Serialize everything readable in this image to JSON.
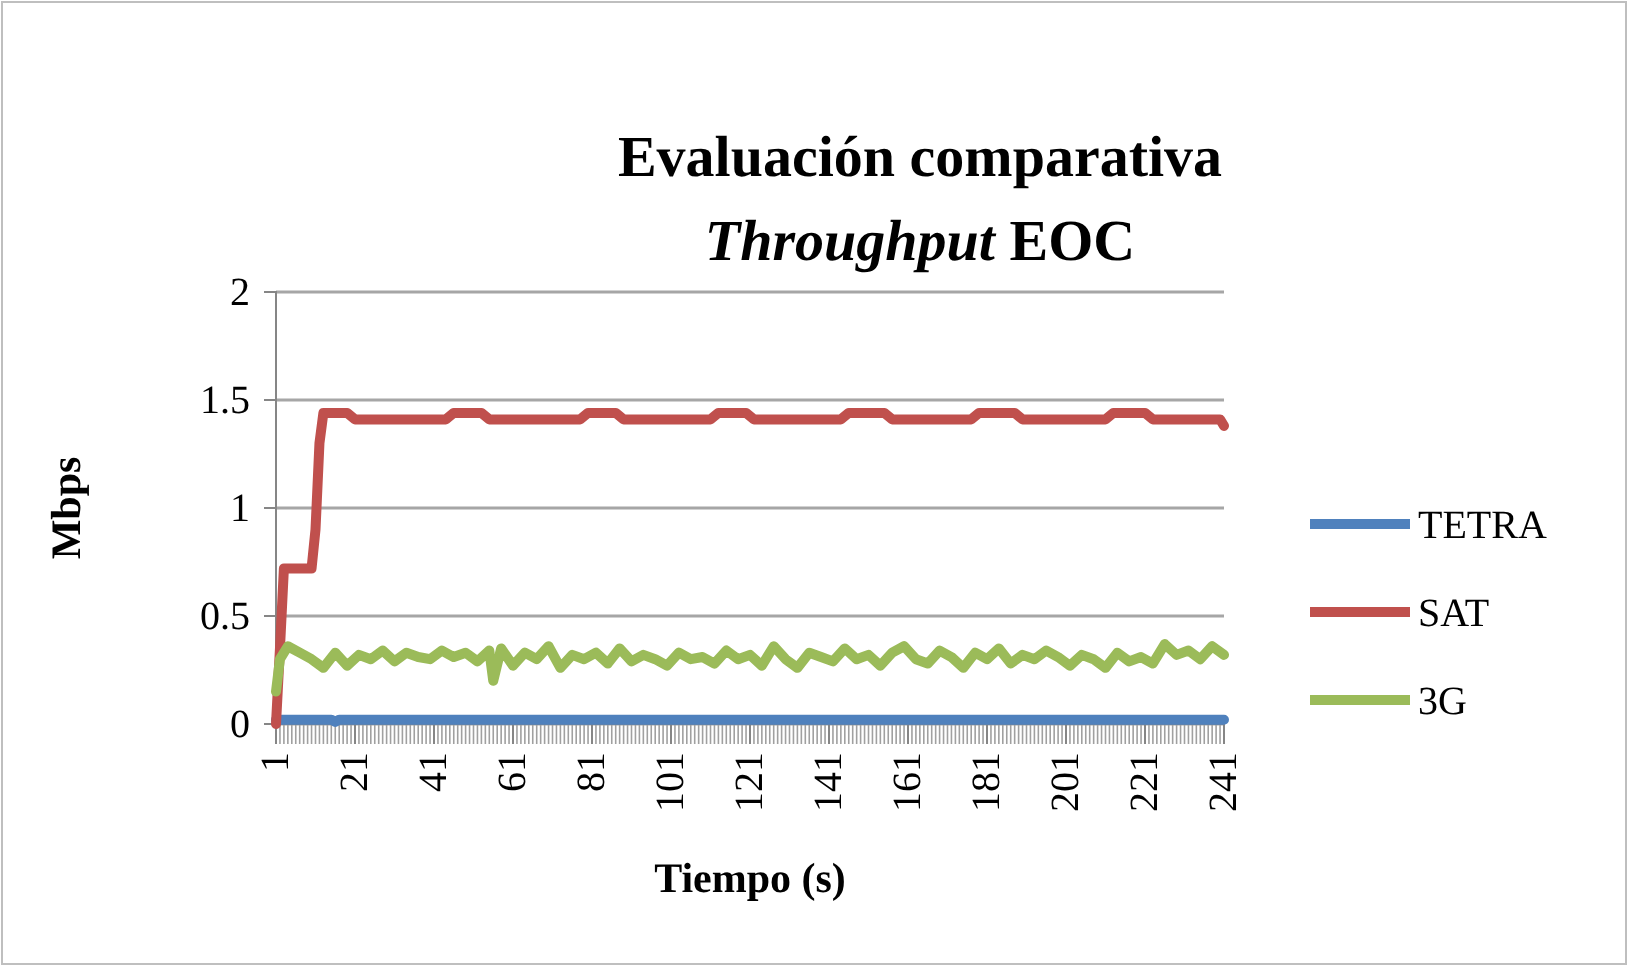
{
  "chart_data": {
    "type": "line",
    "title": "Evaluación comparativa",
    "subtitle": "Throughput EOC",
    "xlabel": "Tiempo (s)",
    "ylabel": "Mbps",
    "xlim": [
      1,
      241
    ],
    "xticks": [
      1,
      21,
      41,
      61,
      81,
      101,
      121,
      141,
      161,
      181,
      201,
      221,
      241
    ],
    "ylim": [
      0,
      2
    ],
    "yticks": [
      0,
      0.5,
      1,
      1.5,
      2
    ],
    "grid": "y",
    "legend": "right",
    "marker": "none",
    "line_style": "solid",
    "series": [
      {
        "name": "TETRA",
        "color": "#4f81bd",
        "x": [
          1,
          15,
          16,
          17,
          241
        ],
        "values": [
          0.02,
          0.02,
          0.01,
          0.02,
          0.02
        ]
      },
      {
        "name": "SAT",
        "color": "#c0504d",
        "x": [
          1,
          2,
          3,
          10,
          11,
          12,
          13,
          19,
          21,
          44,
          46,
          53,
          55,
          78,
          80,
          87,
          89,
          111,
          113,
          120,
          122,
          144,
          146,
          155,
          157,
          177,
          179,
          188,
          190,
          211,
          213,
          221,
          223,
          240,
          241
        ],
        "values": [
          0,
          0.35,
          0.72,
          0.72,
          0.9,
          1.3,
          1.44,
          1.44,
          1.41,
          1.41,
          1.44,
          1.44,
          1.41,
          1.41,
          1.44,
          1.44,
          1.41,
          1.41,
          1.44,
          1.44,
          1.41,
          1.41,
          1.44,
          1.44,
          1.41,
          1.41,
          1.44,
          1.44,
          1.41,
          1.41,
          1.44,
          1.44,
          1.41,
          1.41,
          1.38
        ]
      },
      {
        "name": "3G",
        "color": "#9bbb59",
        "x": [
          1,
          2,
          4,
          7,
          10,
          13,
          16,
          19,
          22,
          25,
          28,
          31,
          34,
          37,
          40,
          43,
          46,
          49,
          52,
          55,
          56,
          58,
          61,
          64,
          67,
          70,
          73,
          76,
          79,
          82,
          85,
          88,
          91,
          94,
          97,
          100,
          103,
          106,
          109,
          112,
          115,
          118,
          121,
          124,
          127,
          130,
          133,
          136,
          139,
          142,
          145,
          148,
          151,
          154,
          157,
          160,
          163,
          166,
          169,
          172,
          175,
          178,
          181,
          184,
          187,
          190,
          193,
          196,
          199,
          202,
          205,
          208,
          211,
          214,
          217,
          220,
          223,
          226,
          229,
          232,
          235,
          238,
          241
        ],
        "values": [
          0.15,
          0.3,
          0.36,
          0.33,
          0.3,
          0.26,
          0.33,
          0.27,
          0.32,
          0.3,
          0.34,
          0.29,
          0.33,
          0.31,
          0.3,
          0.34,
          0.31,
          0.33,
          0.29,
          0.34,
          0.2,
          0.35,
          0.27,
          0.33,
          0.3,
          0.36,
          0.26,
          0.32,
          0.3,
          0.33,
          0.28,
          0.35,
          0.29,
          0.32,
          0.3,
          0.27,
          0.33,
          0.3,
          0.31,
          0.28,
          0.34,
          0.3,
          0.32,
          0.27,
          0.36,
          0.3,
          0.26,
          0.33,
          0.31,
          0.29,
          0.35,
          0.3,
          0.32,
          0.27,
          0.33,
          0.36,
          0.3,
          0.28,
          0.34,
          0.31,
          0.26,
          0.33,
          0.3,
          0.35,
          0.28,
          0.32,
          0.3,
          0.34,
          0.31,
          0.27,
          0.32,
          0.3,
          0.26,
          0.33,
          0.29,
          0.31,
          0.28,
          0.37,
          0.32,
          0.34,
          0.3,
          0.36,
          0.32
        ]
      }
    ]
  }
}
